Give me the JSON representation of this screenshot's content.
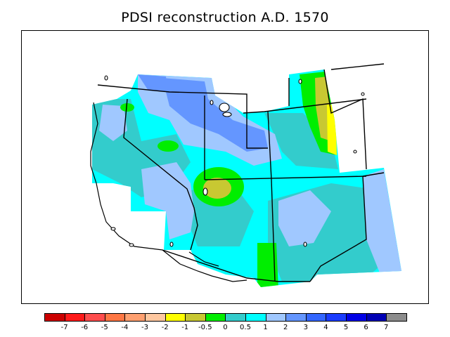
{
  "title": "PDSI reconstruction A.D. 1570",
  "legend": {
    "colors": [
      "#cc0000",
      "#ff1a1a",
      "#ff4d4d",
      "#ff7744",
      "#ffa070",
      "#ffc8a0",
      "#ffff00",
      "#c8c832",
      "#00ee00",
      "#33cccc",
      "#00ffff",
      "#a0c8ff",
      "#6496ff",
      "#3366ff",
      "#1a3cff",
      "#0000e6",
      "#0000b4",
      "#8c8c8c"
    ],
    "ticks": [
      "-7",
      "-6",
      "-5",
      "-4",
      "-3",
      "-2",
      "-1",
      "-0.5",
      "0",
      "0.5",
      "1",
      "2",
      "3",
      "4",
      "5",
      "6",
      "7"
    ]
  }
}
